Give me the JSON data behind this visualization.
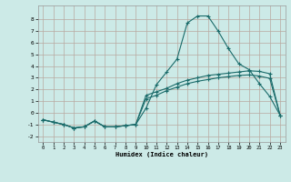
{
  "xlabel": "Humidex (Indice chaleur)",
  "bg_color": "#cceae7",
  "grid_color": "#b8a8a0",
  "line_color": "#1a6b6a",
  "xlim": [
    -0.5,
    23.5
  ],
  "ylim": [
    -2.5,
    9.2
  ],
  "yticks": [
    -2,
    -1,
    0,
    1,
    2,
    3,
    4,
    5,
    6,
    7,
    8
  ],
  "xticks": [
    0,
    1,
    2,
    3,
    4,
    5,
    6,
    7,
    8,
    9,
    10,
    11,
    12,
    13,
    14,
    15,
    16,
    17,
    18,
    19,
    20,
    21,
    22,
    23
  ],
  "series1_x": [
    0,
    1,
    2,
    3,
    4,
    5,
    6,
    7,
    8,
    9,
    10,
    11,
    12,
    13,
    14,
    15,
    16,
    17,
    18,
    19,
    20,
    21,
    22,
    23
  ],
  "series1_y": [
    -0.6,
    -0.8,
    -1.0,
    -1.3,
    -1.2,
    -0.7,
    -1.2,
    -1.2,
    -1.1,
    -1.0,
    0.4,
    2.4,
    3.5,
    4.6,
    7.7,
    8.3,
    8.3,
    7.0,
    5.5,
    4.2,
    3.7,
    2.5,
    1.4,
    -0.2
  ],
  "series2_x": [
    0,
    1,
    2,
    3,
    4,
    5,
    6,
    7,
    8,
    9,
    10,
    11,
    12,
    13,
    14,
    15,
    16,
    17,
    18,
    19,
    20,
    21,
    22,
    23
  ],
  "series2_y": [
    -0.6,
    -0.8,
    -1.0,
    -1.3,
    -1.2,
    -0.7,
    -1.2,
    -1.2,
    -1.1,
    -1.0,
    1.5,
    1.8,
    2.1,
    2.5,
    2.8,
    3.0,
    3.2,
    3.3,
    3.4,
    3.5,
    3.6,
    3.55,
    3.35,
    -0.2
  ],
  "series3_x": [
    0,
    1,
    2,
    3,
    4,
    5,
    6,
    7,
    8,
    9,
    10,
    11,
    12,
    13,
    14,
    15,
    16,
    17,
    18,
    19,
    20,
    21,
    22,
    23
  ],
  "series3_y": [
    -0.6,
    -0.8,
    -1.0,
    -1.3,
    -1.2,
    -0.7,
    -1.2,
    -1.2,
    -1.1,
    -1.0,
    1.2,
    1.5,
    1.9,
    2.2,
    2.5,
    2.7,
    2.85,
    3.0,
    3.1,
    3.2,
    3.25,
    3.15,
    2.95,
    -0.2
  ]
}
